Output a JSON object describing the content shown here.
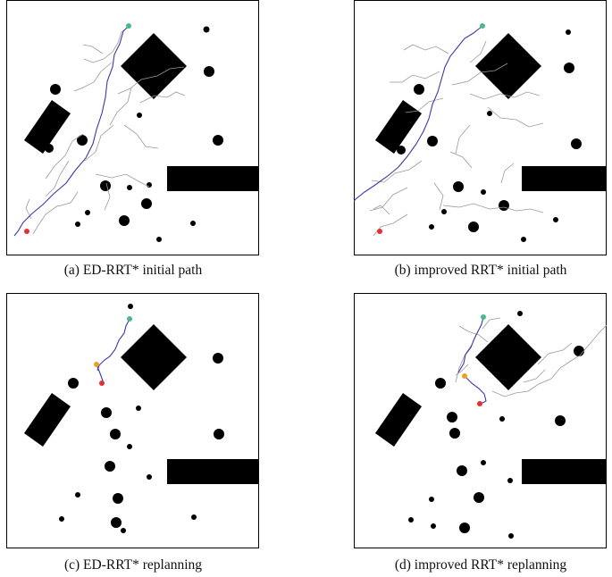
{
  "panels": [
    {
      "id": "a",
      "caption": "(a) ED-RRT* initial path"
    },
    {
      "id": "b",
      "caption": "(b) improved RRT* initial path"
    },
    {
      "id": "c",
      "caption": "(c) ED-RRT* replanning"
    },
    {
      "id": "d",
      "caption": "(d) improved RRT* replanning"
    }
  ],
  "colors": {
    "obstacle": "#000000",
    "tree": "#9a9a9a",
    "path": "#3a3aa8",
    "goal": "#4bb98a",
    "start": "#e0303a",
    "replan_point": "#f0a020"
  }
}
